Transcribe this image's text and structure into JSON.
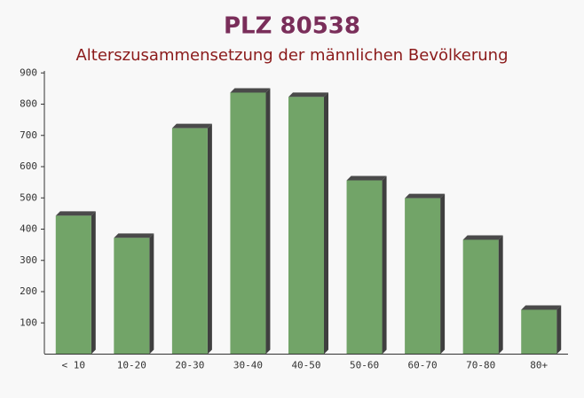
{
  "chart_data": {
    "type": "bar",
    "title": "PLZ 80538",
    "subtitle": "Alterszusammensetzung der männlichen Bevölkerung",
    "categories": [
      "< 10",
      "10-20",
      "20-30",
      "30-40",
      "40-50",
      "50-60",
      "60-70",
      "70-80",
      "80+"
    ],
    "values": [
      443,
      372,
      723,
      837,
      823,
      556,
      499,
      366,
      142
    ],
    "color": "#6a9f60",
    "ylim": [
      0,
      900
    ],
    "yticks": [
      100,
      200,
      300,
      400,
      500,
      600,
      700,
      800,
      900
    ]
  }
}
